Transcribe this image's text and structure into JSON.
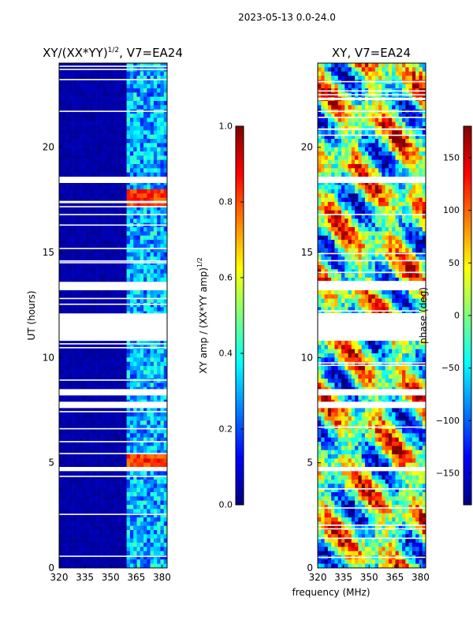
{
  "figure_title": "2023-05-13 0.0-24.0",
  "xlabel_shared": "frequency (MHz)",
  "colors": {
    "jet": [
      "#00007f",
      "#0000ff",
      "#007fff",
      "#00ffff",
      "#7fff7f",
      "#ffff00",
      "#ff7f00",
      "#ff0000",
      "#7f0000"
    ],
    "flagged": "#ffffff"
  },
  "chart_data": [
    {
      "type": "heatmap",
      "title_prefix": "XY/(XX*YY)",
      "title_exponent": "1/2",
      "title_suffix": ", V7=EA24",
      "xlabel": "",
      "ylabel": "UT (hours)",
      "xlim": [
        320,
        383
      ],
      "ylim": [
        0,
        24
      ],
      "xticks": [
        320,
        335,
        350,
        365,
        380
      ],
      "yticks": [
        0,
        5,
        10,
        15,
        20
      ],
      "colorbar": {
        "label_main": "XY amp / (XX*YY amp)",
        "label_exponent": "1/2",
        "range": [
          0.0,
          1.0
        ],
        "ticks": [
          "0.0",
          "0.2",
          "0.4",
          "0.6",
          "0.8",
          "1.0"
        ]
      },
      "description_values": {
        "background_level": 0.0,
        "band_start_mhz": 360,
        "band_level_range": [
          0.15,
          0.45
        ],
        "hotspots": [
          {
            "hours": [
              17.3,
              17.9
            ],
            "level": 0.75
          },
          {
            "hours": [
              4.9,
              5.4
            ],
            "level": 0.75
          }
        ]
      },
      "flagged_hours": [
        [
          10.8,
          12.1
        ],
        [
          7.6,
          7.9
        ],
        [
          13.2,
          13.6
        ],
        [
          8.2,
          8.5
        ],
        [
          4.6,
          4.8
        ],
        [
          18.3,
          18.6
        ]
      ]
    },
    {
      "type": "heatmap",
      "title": "XY, V7=EA24",
      "xlabel": "frequency (MHz)",
      "ylabel": "",
      "xlim": [
        320,
        383
      ],
      "ylim": [
        0,
        24
      ],
      "xticks": [
        320,
        335,
        350,
        365,
        380
      ],
      "yticks": [
        0,
        5,
        10,
        15,
        20
      ],
      "colorbar": {
        "label": "phase (deg)",
        "range": [
          -180,
          180
        ],
        "ticks": [
          "−150",
          "−100",
          "−50",
          "0",
          "50",
          "100",
          "150"
        ]
      },
      "flagged_hours": [
        [
          10.8,
          12.1
        ],
        [
          7.6,
          7.9
        ],
        [
          13.2,
          13.6
        ],
        [
          8.2,
          8.5
        ],
        [
          4.6,
          4.8
        ],
        [
          18.3,
          18.6
        ]
      ]
    }
  ]
}
